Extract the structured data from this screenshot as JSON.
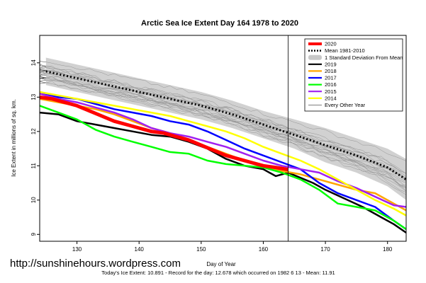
{
  "watermark": "http://sunshinehours.wordpress.com",
  "footer": "Today's Ice Extent: 10.891  - Record for the day: 12.678 which occurred on 1982 6 13  - Mean: 11.91",
  "chart_data": {
    "type": "line",
    "title": "Arctic Sea Ice Extent Day 164 1978 to 2020",
    "xlabel": "Day of Year",
    "ylabel": "Ice Extent in millions of sq. km.",
    "xlim": [
      124,
      183
    ],
    "ylim": [
      8.8,
      14.8
    ],
    "x_ticks": [
      130,
      140,
      150,
      160,
      170,
      180
    ],
    "y_ticks": [
      9,
      10,
      11,
      12,
      13,
      14
    ],
    "vline_day": 164,
    "legend_position": "top-right",
    "legend": [
      {
        "label": "2020",
        "color": "#ff0000",
        "style": "thick"
      },
      {
        "label": "Mean 1981-2010",
        "color": "#000000",
        "style": "dotted"
      },
      {
        "label": "1 Standard Deviation From Mean",
        "color": "#c8c8c8",
        "style": "band"
      },
      {
        "label": "2019",
        "color": "#000000",
        "style": "line"
      },
      {
        "label": "2018",
        "color": "#ffa500",
        "style": "line"
      },
      {
        "label": "2017",
        "color": "#0000ff",
        "style": "line"
      },
      {
        "label": "2016",
        "color": "#00ff00",
        "style": "line"
      },
      {
        "label": "2015",
        "color": "#a020f0",
        "style": "line"
      },
      {
        "label": "2014",
        "color": "#ffff00",
        "style": "line"
      },
      {
        "label": "Every Other Year",
        "color": "#555555",
        "style": "thin"
      }
    ],
    "mean": {
      "name": "Mean 1981-2010",
      "x": [
        125,
        130,
        135,
        140,
        145,
        150,
        155,
        160,
        165,
        170,
        175,
        180,
        183
      ],
      "y": [
        13.75,
        13.55,
        13.35,
        13.15,
        12.95,
        12.75,
        12.5,
        12.2,
        11.9,
        11.6,
        11.3,
        10.95,
        10.6
      ]
    },
    "std_band": {
      "x": [
        125,
        130,
        135,
        140,
        145,
        150,
        155,
        160,
        165,
        170,
        175,
        180,
        183
      ],
      "upper": [
        14.15,
        13.95,
        13.75,
        13.55,
        13.35,
        13.15,
        12.9,
        12.6,
        12.35,
        12.1,
        11.8,
        11.5,
        11.2
      ],
      "lower": [
        13.35,
        13.15,
        12.95,
        12.75,
        12.55,
        12.35,
        12.1,
        11.8,
        11.5,
        11.1,
        10.8,
        10.4,
        10.0
      ]
    },
    "series": [
      {
        "name": "2020",
        "color": "#ff0000",
        "width": 5,
        "x": [
          124,
          126,
          128,
          130,
          132,
          134,
          136,
          138,
          140,
          142,
          144,
          146,
          148,
          150,
          152,
          154,
          156,
          158,
          160,
          162,
          164
        ],
        "y": [
          13.0,
          12.95,
          12.85,
          12.75,
          12.6,
          12.45,
          12.3,
          12.2,
          12.1,
          12.0,
          11.95,
          11.85,
          11.75,
          11.6,
          11.45,
          11.3,
          11.2,
          11.1,
          11.0,
          10.95,
          10.89
        ]
      },
      {
        "name": "2019",
        "color": "#000000",
        "width": 2.5,
        "x": [
          124,
          127,
          130,
          133,
          136,
          139,
          142,
          145,
          148,
          151,
          154,
          157,
          160,
          162,
          164,
          166,
          168,
          170,
          173,
          176,
          179,
          181,
          183
        ],
        "y": [
          12.55,
          12.5,
          12.3,
          12.2,
          12.1,
          12.0,
          11.9,
          11.85,
          11.7,
          11.5,
          11.2,
          11.0,
          10.9,
          10.7,
          10.8,
          10.65,
          10.5,
          10.3,
          10.05,
          9.8,
          9.5,
          9.3,
          9.05
        ]
      },
      {
        "name": "2018",
        "color": "#ffa500",
        "width": 2.5,
        "x": [
          124,
          127,
          130,
          133,
          136,
          139,
          142,
          145,
          148,
          151,
          154,
          157,
          160,
          163,
          166,
          169,
          172,
          175,
          178,
          181,
          183
        ],
        "y": [
          12.95,
          12.85,
          12.75,
          12.65,
          12.5,
          12.3,
          12.1,
          11.95,
          11.75,
          11.55,
          11.35,
          11.15,
          10.95,
          10.85,
          10.75,
          10.6,
          10.45,
          10.3,
          10.2,
          9.9,
          9.7
        ]
      },
      {
        "name": "2017",
        "color": "#0000ff",
        "width": 2.5,
        "x": [
          124,
          127,
          130,
          133,
          136,
          139,
          142,
          145,
          148,
          151,
          154,
          157,
          160,
          163,
          166,
          169,
          172,
          175,
          178,
          181,
          183
        ],
        "y": [
          13.1,
          13.0,
          12.95,
          12.8,
          12.65,
          12.55,
          12.45,
          12.3,
          12.2,
          12.0,
          11.75,
          11.5,
          11.3,
          11.1,
          10.9,
          10.5,
          10.2,
          10.0,
          9.8,
          9.4,
          9.15
        ]
      },
      {
        "name": "2016",
        "color": "#00ff00",
        "width": 2.5,
        "x": [
          124,
          127,
          130,
          133,
          136,
          139,
          142,
          145,
          148,
          151,
          154,
          157,
          160,
          163,
          166,
          169,
          172,
          175,
          178,
          181,
          183
        ],
        "y": [
          12.75,
          12.55,
          12.35,
          12.05,
          11.85,
          11.7,
          11.55,
          11.4,
          11.35,
          11.15,
          11.05,
          11.0,
          10.95,
          10.8,
          10.6,
          10.3,
          9.9,
          9.8,
          9.7,
          9.4,
          9.15
        ]
      },
      {
        "name": "2015",
        "color": "#a020f0",
        "width": 2.5,
        "x": [
          124,
          127,
          130,
          133,
          136,
          139,
          142,
          145,
          148,
          151,
          154,
          157,
          160,
          163,
          166,
          169,
          172,
          175,
          178,
          181,
          183
        ],
        "y": [
          13.1,
          12.95,
          12.85,
          12.7,
          12.55,
          12.35,
          12.1,
          11.95,
          11.85,
          11.7,
          11.55,
          11.35,
          11.15,
          11.0,
          10.9,
          10.8,
          10.55,
          10.35,
          10.1,
          9.85,
          9.8
        ]
      },
      {
        "name": "2014",
        "color": "#ffff00",
        "width": 2.5,
        "x": [
          124,
          127,
          130,
          133,
          136,
          139,
          142,
          145,
          148,
          151,
          154,
          157,
          160,
          163,
          166,
          169,
          172,
          175,
          178,
          181,
          183
        ],
        "y": [
          13.15,
          13.05,
          12.95,
          12.85,
          12.75,
          12.65,
          12.55,
          12.45,
          12.3,
          12.15,
          12.0,
          11.8,
          11.55,
          11.35,
          11.15,
          10.9,
          10.6,
          10.3,
          10.0,
          9.75,
          9.55
        ]
      }
    ]
  }
}
